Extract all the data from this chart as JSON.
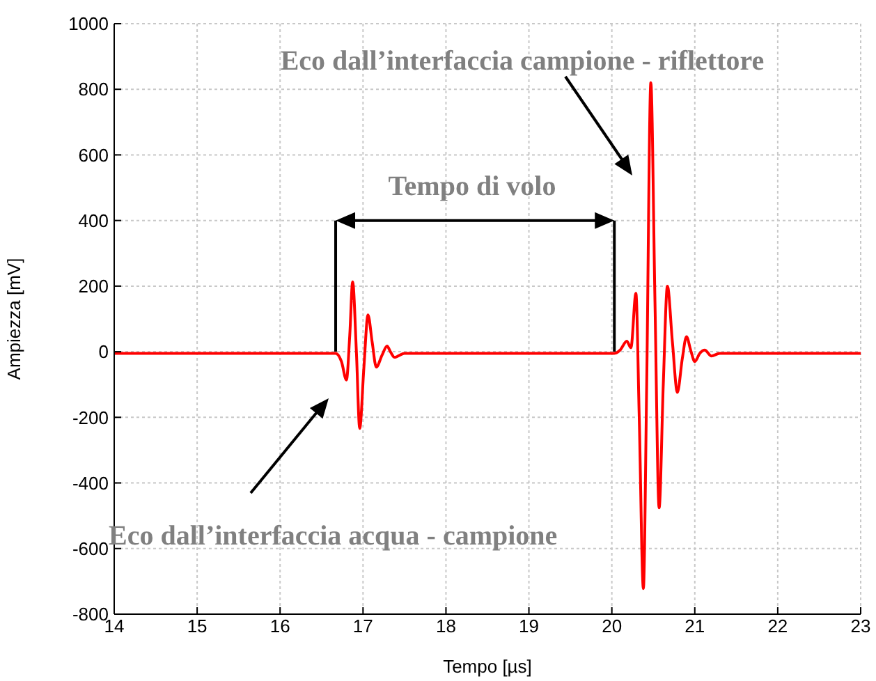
{
  "chart_data": {
    "type": "line",
    "xlabel": "Tempo [µs]",
    "ylabel": "Ampiezza [mV]",
    "xlim": [
      14,
      23
    ],
    "ylim": [
      -800,
      1000
    ],
    "xticks": [
      14,
      15,
      16,
      17,
      18,
      19,
      20,
      21,
      22,
      23
    ],
    "yticks": [
      -800,
      -600,
      -400,
      -200,
      0,
      200,
      400,
      600,
      800,
      1000
    ],
    "grid": true,
    "marker": "none",
    "line_style": "solid",
    "x": [
      14,
      15,
      16,
      16.6,
      16.67,
      16.74,
      16.8,
      16.84,
      16.875,
      16.92,
      16.96,
      17.01,
      17.06,
      17.11,
      17.16,
      17.23,
      17.29,
      17.33,
      17.38,
      17.5,
      18,
      19,
      20,
      20.03,
      20.1,
      20.18,
      20.23,
      20.29,
      20.33,
      20.38,
      20.42,
      20.47,
      20.52,
      20.57,
      20.62,
      20.67,
      20.73,
      20.79,
      20.85,
      20.9,
      20.95,
      21,
      21.06,
      21.12,
      21.2,
      21.3,
      22,
      23
    ],
    "series": [
      {
        "color": "#ff0000",
        "values": [
          -5,
          -5,
          -5,
          -5,
          -5,
          -30,
          -86,
          50,
          213,
          0,
          -234,
          -50,
          112,
          30,
          -47,
          -10,
          17,
          0,
          -17,
          -5,
          -5,
          -5,
          -5,
          -5,
          5,
          32,
          12,
          178,
          -200,
          -722,
          -100,
          820,
          150,
          -476,
          -100,
          200,
          30,
          -124,
          -20,
          46,
          5,
          -30,
          -5,
          5,
          -13,
          -5,
          -5,
          -5
        ]
      }
    ],
    "annotations": [
      "Eco dall’interfaccia campione - riflettore",
      "Tempo di volo",
      "Eco dall’interfaccia acqua - campione"
    ]
  }
}
